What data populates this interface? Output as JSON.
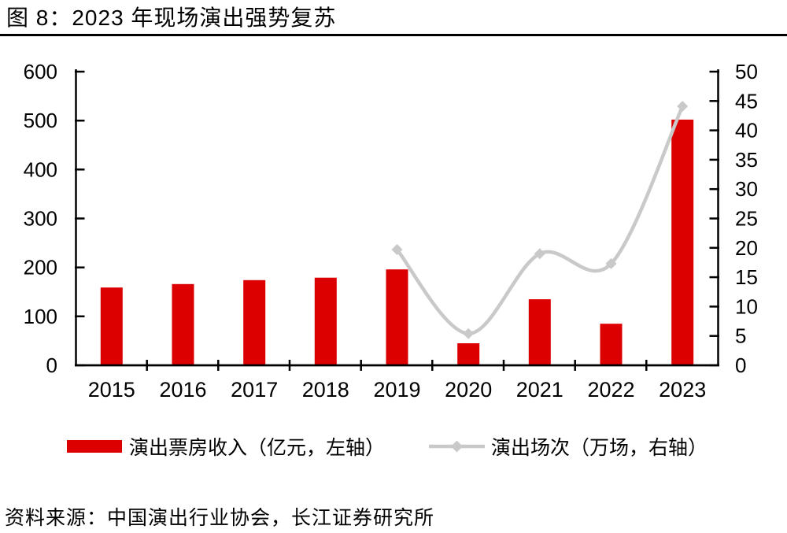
{
  "header": {
    "title": "图 8：2023 年现场演出强势复苏"
  },
  "chart_data": {
    "type": "combo",
    "title": "图 8：2023 年现场演出强势复苏",
    "categories": [
      "2015",
      "2016",
      "2017",
      "2018",
      "2019",
      "2020",
      "2021",
      "2022",
      "2023"
    ],
    "series": [
      {
        "name": "演出票房收入（亿元，左轴）",
        "type": "bar",
        "axis": "left",
        "color": "#dd0000",
        "values": [
          159,
          166,
          174,
          179,
          196,
          45,
          135,
          85,
          502
        ]
      },
      {
        "name": "演出场次（万场，右轴）",
        "type": "line",
        "axis": "right",
        "color": "#c9c9c9",
        "start_index": 4,
        "x": [
          "2019",
          "2020",
          "2021",
          "2022",
          "2023"
        ],
        "values": [
          19.7,
          5.4,
          19.0,
          17.3,
          44.1
        ]
      }
    ],
    "left_axis": {
      "min": 0,
      "max": 600,
      "step": 100
    },
    "right_axis": {
      "min": 0,
      "max": 50,
      "step": 5
    },
    "axis_color": "#000000",
    "grid": false,
    "legend_position": "bottom"
  },
  "source": {
    "text": "资料来源：中国演出行业协会，长江证券研究所"
  }
}
